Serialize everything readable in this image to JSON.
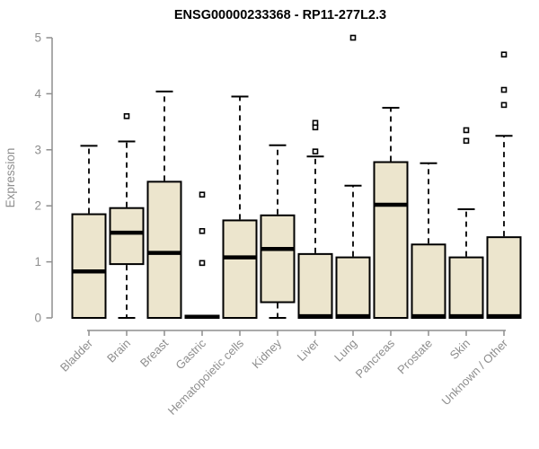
{
  "chart_data": {
    "type": "box",
    "title": "ENSG00000233368 - RP11-277L2.3",
    "ylabel": "Expression",
    "xlabel": "",
    "ylim": [
      0,
      5
    ],
    "yticks": [
      0,
      1,
      2,
      3,
      4,
      5
    ],
    "grid": false,
    "legend": "none",
    "categories": [
      "Bladder",
      "Brain",
      "Breast",
      "Gastric",
      "Hematopoietic cells",
      "Kidney",
      "Liver",
      "Lung",
      "Pancreas",
      "Prostate",
      "Skin",
      "Unknown / Other"
    ],
    "boxes": [
      {
        "category": "Bladder",
        "low": 0,
        "q1": 0,
        "median": 0.83,
        "q3": 1.85,
        "high": 3.07,
        "outliers": []
      },
      {
        "category": "Brain",
        "low": 0,
        "q1": 0.96,
        "median": 1.52,
        "q3": 1.96,
        "high": 3.15,
        "outliers": [
          3.6
        ]
      },
      {
        "category": "Breast",
        "low": 0,
        "q1": 0,
        "median": 1.16,
        "q3": 2.43,
        "high": 4.04,
        "outliers": []
      },
      {
        "category": "Gastric",
        "low": 0.02,
        "q1": 0.02,
        "median": 0.02,
        "q3": 0.02,
        "high": 0.02,
        "outliers": [
          2.2,
          1.55,
          0.98
        ]
      },
      {
        "category": "Hematopoietic cells",
        "low": 0,
        "q1": 0,
        "median": 1.08,
        "q3": 1.74,
        "high": 3.95,
        "outliers": []
      },
      {
        "category": "Kidney",
        "low": 0,
        "q1": 0.28,
        "median": 1.23,
        "q3": 1.83,
        "high": 3.08,
        "outliers": []
      },
      {
        "category": "Liver",
        "low": 0,
        "q1": 0,
        "median": 0.03,
        "q3": 1.14,
        "high": 2.88,
        "outliers": [
          3.48,
          3.4,
          2.97
        ]
      },
      {
        "category": "Lung",
        "low": 0,
        "q1": 0,
        "median": 0.03,
        "q3": 1.08,
        "high": 2.36,
        "outliers": [
          5.0
        ]
      },
      {
        "category": "Pancreas",
        "low": 0,
        "q1": 0,
        "median": 2.02,
        "q3": 2.78,
        "high": 3.75,
        "outliers": []
      },
      {
        "category": "Prostate",
        "low": 0,
        "q1": 0,
        "median": 0.03,
        "q3": 1.31,
        "high": 2.76,
        "outliers": []
      },
      {
        "category": "Skin",
        "low": 0,
        "q1": 0,
        "median": 0.03,
        "q3": 1.08,
        "high": 1.94,
        "outliers": [
          3.35,
          3.16
        ]
      },
      {
        "category": "Unknown / Other",
        "low": 0,
        "q1": 0,
        "median": 0.03,
        "q3": 1.44,
        "high": 3.25,
        "outliers": [
          4.7,
          4.07,
          3.8
        ]
      }
    ],
    "colors": {
      "box_fill": "#ece5cd",
      "box_line": "#000000",
      "axis": "#8e8e8e",
      "title": "#000000",
      "background": "#ffffff"
    }
  }
}
